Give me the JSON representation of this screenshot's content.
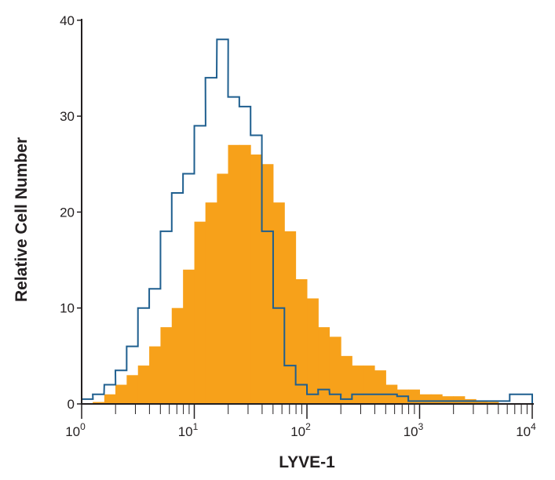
{
  "chart_data": {
    "type": "histogram",
    "title": "",
    "xlabel": "LYVE-1",
    "ylabel": "Relative Cell Number",
    "x_scale": "log",
    "xlim": [
      1,
      10000
    ],
    "ylim": [
      0,
      40
    ],
    "x_ticks": [
      {
        "base": "10",
        "exp": "0"
      },
      {
        "base": "10",
        "exp": "1"
      },
      {
        "base": "10",
        "exp": "2"
      },
      {
        "base": "10",
        "exp": "3"
      },
      {
        "base": "10",
        "exp": "4"
      }
    ],
    "y_ticks": [
      "0",
      "10",
      "20",
      "30",
      "40"
    ],
    "grid": false,
    "x": [
      1.26,
      1.58,
      2.0,
      2.51,
      3.16,
      3.98,
      5.01,
      6.31,
      7.94,
      10,
      12.6,
      15.8,
      20,
      25.1,
      31.6,
      39.8,
      50.1,
      63.1,
      79.4,
      100,
      126,
      158,
      200,
      251,
      316,
      398,
      501,
      631,
      794,
      1000,
      1259,
      1585,
      1995,
      2512,
      3162,
      3981,
      5012,
      6310,
      7943,
      10000
    ],
    "series": [
      {
        "style": "filled",
        "color": "#f7a11a",
        "values": [
          0,
          0.2,
          1,
          2,
          3,
          4,
          6,
          8,
          10,
          14,
          19,
          21,
          24,
          27,
          27,
          26,
          25,
          21,
          18,
          13,
          11,
          8,
          7,
          5,
          4,
          4,
          3.5,
          2,
          1.5,
          1.5,
          1,
          1,
          0.8,
          0.8,
          0.5,
          0.3,
          0.2,
          0,
          0,
          0
        ]
      },
      {
        "style": "outline",
        "color": "#1f5f8f",
        "values": [
          0.5,
          1,
          2,
          3.5,
          6,
          10,
          12,
          18,
          22,
          24,
          29,
          34,
          38,
          32,
          31,
          28,
          18,
          10,
          4,
          2,
          1,
          1.5,
          1,
          0.5,
          1,
          1,
          1,
          1,
          0.8,
          0.3,
          0.3,
          0.3,
          0.3,
          0.3,
          0.3,
          0.3,
          0.3,
          0.3,
          1,
          1
        ]
      }
    ]
  }
}
